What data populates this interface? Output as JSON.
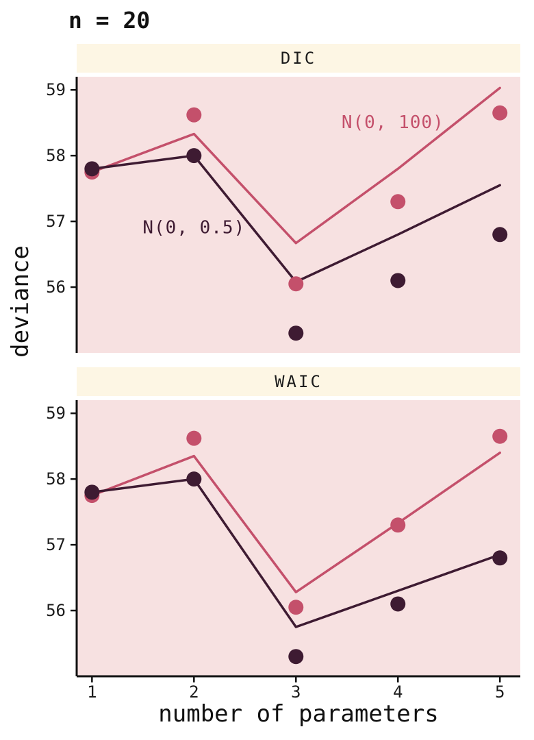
{
  "chart_data": {
    "type": "line+scatter",
    "title": "n = 20",
    "xlabel": "number of parameters",
    "ylabel": "deviance",
    "x": [
      1,
      2,
      3,
      4,
      5
    ],
    "xticks": [
      1,
      2,
      3,
      4,
      5
    ],
    "yticks": [
      56,
      57,
      58,
      59
    ],
    "xlim": [
      0.85,
      5.2
    ],
    "ylim": [
      55.0,
      59.2
    ],
    "legend": "none",
    "grid": false,
    "colors": {
      "panel_bg": "#F7E1E1",
      "strip_bg": "#FDF6E4",
      "axis": "#111111",
      "text": "#1C1C1C",
      "red": "#C4506B",
      "dark": "#3E1B32"
    },
    "facets": [
      {
        "label": "DIC",
        "series": [
          {
            "name": "N(0, 100)",
            "color": "#C4506B",
            "points": [
              57.75,
              58.62,
              56.05,
              57.3,
              58.65
            ],
            "line": [
              57.75,
              58.33,
              56.67,
              57.8,
              59.03
            ]
          },
          {
            "name": "N(0, 0.5)",
            "color": "#3E1B32",
            "points": [
              57.8,
              58.0,
              55.3,
              56.1,
              56.8
            ],
            "line": [
              57.8,
              58.0,
              56.08,
              56.8,
              57.55
            ]
          }
        ],
        "annotations": [
          {
            "text": "N(0, 100)",
            "x": 3.95,
            "y": 58.5,
            "color": "#C4506B"
          },
          {
            "text": "N(0, 0.5)",
            "x": 2.0,
            "y": 56.9,
            "color": "#3E1B32"
          }
        ]
      },
      {
        "label": "WAIC",
        "series": [
          {
            "name": "N(0, 100)",
            "color": "#C4506B",
            "points": [
              57.75,
              58.62,
              56.05,
              57.3,
              58.65
            ],
            "line": [
              57.75,
              58.35,
              56.28,
              57.33,
              58.4
            ]
          },
          {
            "name": "N(0, 0.5)",
            "color": "#3E1B32",
            "points": [
              57.8,
              58.0,
              55.3,
              56.1,
              56.8
            ],
            "line": [
              57.8,
              58.0,
              55.75,
              56.3,
              56.85
            ]
          }
        ],
        "annotations": []
      }
    ]
  }
}
